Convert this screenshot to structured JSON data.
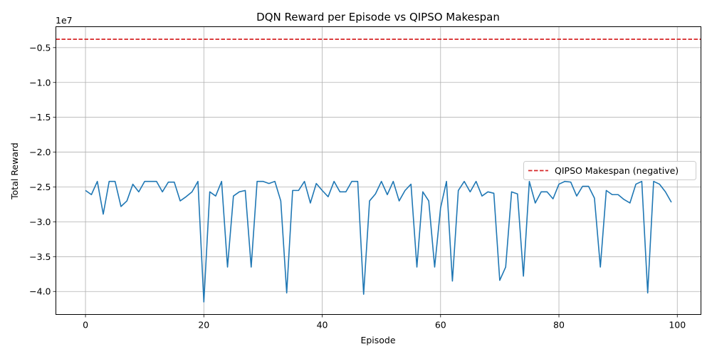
{
  "chart_data": {
    "type": "line",
    "title": "DQN Reward per Episode vs QIPSO Makespan",
    "xlabel": "Episode",
    "ylabel": "Total Reward",
    "y_scale_label": "1e7",
    "xlim": [
      -5,
      104
    ],
    "ylim": [
      -4.33,
      -0.2
    ],
    "xticks": [
      0,
      20,
      40,
      60,
      80,
      100
    ],
    "yticks": [
      -0.5,
      -1.0,
      -1.5,
      -2.0,
      -2.5,
      -3.0,
      -3.5,
      -4.0
    ],
    "xtick_labels": [
      "0",
      "20",
      "40",
      "60",
      "80",
      "100"
    ],
    "ytick_labels": [
      "−0.5",
      "−1.0",
      "−1.5",
      "−2.0",
      "−2.5",
      "−3.0",
      "−3.5",
      "−4.0"
    ],
    "grid": true,
    "legend_position": "center-right",
    "series": [
      {
        "name": "",
        "color": "#1f77b4",
        "style": "solid",
        "x": [
          0,
          1,
          2,
          3,
          4,
          5,
          6,
          7,
          8,
          9,
          10,
          11,
          12,
          13,
          14,
          15,
          16,
          17,
          18,
          19,
          20,
          21,
          22,
          23,
          24,
          25,
          26,
          27,
          28,
          29,
          30,
          31,
          32,
          33,
          34,
          35,
          36,
          37,
          38,
          39,
          40,
          41,
          42,
          43,
          44,
          45,
          46,
          47,
          48,
          49,
          50,
          51,
          52,
          53,
          54,
          55,
          56,
          57,
          58,
          59,
          60,
          61,
          62,
          63,
          64,
          65,
          66,
          67,
          68,
          69,
          70,
          71,
          72,
          73,
          74,
          75,
          76,
          77,
          78,
          79,
          80,
          81,
          82,
          83,
          84,
          85,
          86,
          87,
          88,
          89,
          90,
          91,
          92,
          93,
          94,
          95,
          96,
          97,
          98,
          99
        ],
        "y": [
          -2.55,
          -2.61,
          -2.42,
          -2.89,
          -2.42,
          -2.42,
          -2.78,
          -2.7,
          -2.46,
          -2.57,
          -2.42,
          -2.42,
          -2.42,
          -2.57,
          -2.43,
          -2.43,
          -2.7,
          -2.64,
          -2.57,
          -2.42,
          -4.15,
          -2.57,
          -2.63,
          -2.42,
          -3.65,
          -2.63,
          -2.57,
          -2.55,
          -3.65,
          -2.42,
          -2.42,
          -2.45,
          -2.42,
          -2.7,
          -4.02,
          -2.55,
          -2.55,
          -2.42,
          -2.73,
          -2.45,
          -2.55,
          -2.64,
          -2.42,
          -2.57,
          -2.57,
          -2.42,
          -2.42,
          -4.04,
          -2.7,
          -2.6,
          -2.42,
          -2.61,
          -2.42,
          -2.7,
          -2.55,
          -2.46,
          -3.65,
          -2.57,
          -2.7,
          -3.65,
          -2.8,
          -2.42,
          -3.85,
          -2.55,
          -2.42,
          -2.57,
          -2.42,
          -2.63,
          -2.57,
          -2.59,
          -3.84,
          -3.65,
          -2.57,
          -2.6,
          -3.78,
          -2.42,
          -2.73,
          -2.57,
          -2.57,
          -2.67,
          -2.46,
          -2.42,
          -2.43,
          -2.63,
          -2.49,
          -2.49,
          -2.66,
          -3.65,
          -2.55,
          -2.61,
          -2.61,
          -2.68,
          -2.73,
          -2.46,
          -2.42,
          -4.02,
          -2.42,
          -2.46,
          -2.57,
          -2.72
        ]
      },
      {
        "name": "QIPSO Makespan (negative)",
        "color": "#d62728",
        "style": "dashed",
        "type": "hline",
        "y_value": -0.38
      }
    ]
  }
}
